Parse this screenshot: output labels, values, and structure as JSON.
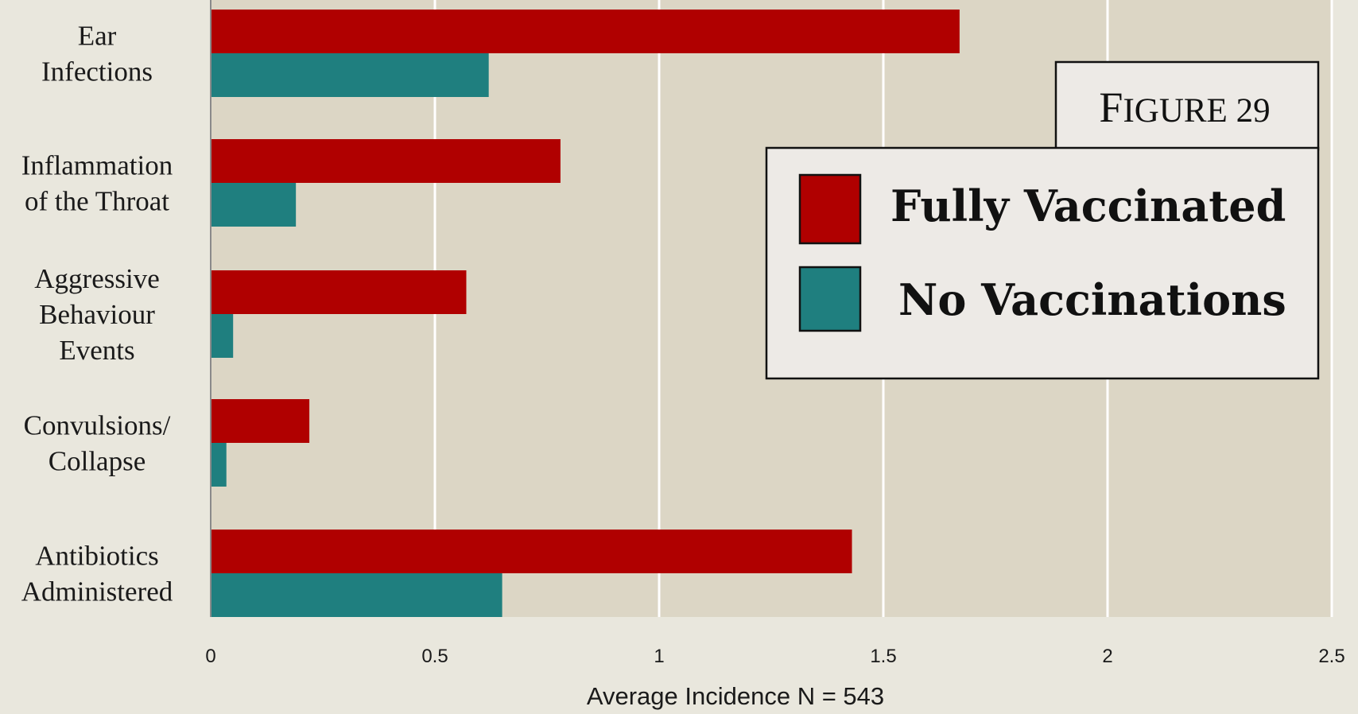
{
  "chart_data": {
    "type": "bar",
    "orientation": "horizontal",
    "categories": [
      [
        "Ear",
        "Infections"
      ],
      [
        "Inflammation",
        "of the Throat"
      ],
      [
        "Aggressive",
        "Behaviour",
        "Events"
      ],
      [
        "Convulsions/",
        "Collapse"
      ],
      [
        "Antibiotics",
        "Administered"
      ]
    ],
    "series": [
      {
        "name": "Fully Vaccinated",
        "color": "#b00000",
        "values": [
          1.67,
          0.78,
          0.57,
          0.22,
          1.43
        ]
      },
      {
        "name": "No Vaccinations",
        "color": "#1f7f7f",
        "values": [
          0.62,
          0.19,
          0.05,
          0.035,
          0.65
        ]
      }
    ],
    "xlim": [
      0,
      2.5
    ],
    "xticks": [
      "0",
      "0.5",
      "1",
      "1.5",
      "2",
      "2.5"
    ],
    "xlabel": "Average Incidence N = 543",
    "grid": true,
    "legend_position": "right",
    "plot_background": "#dcd6c5"
  },
  "figure_label": {
    "first": "F",
    "rest": "IGURE 29"
  }
}
